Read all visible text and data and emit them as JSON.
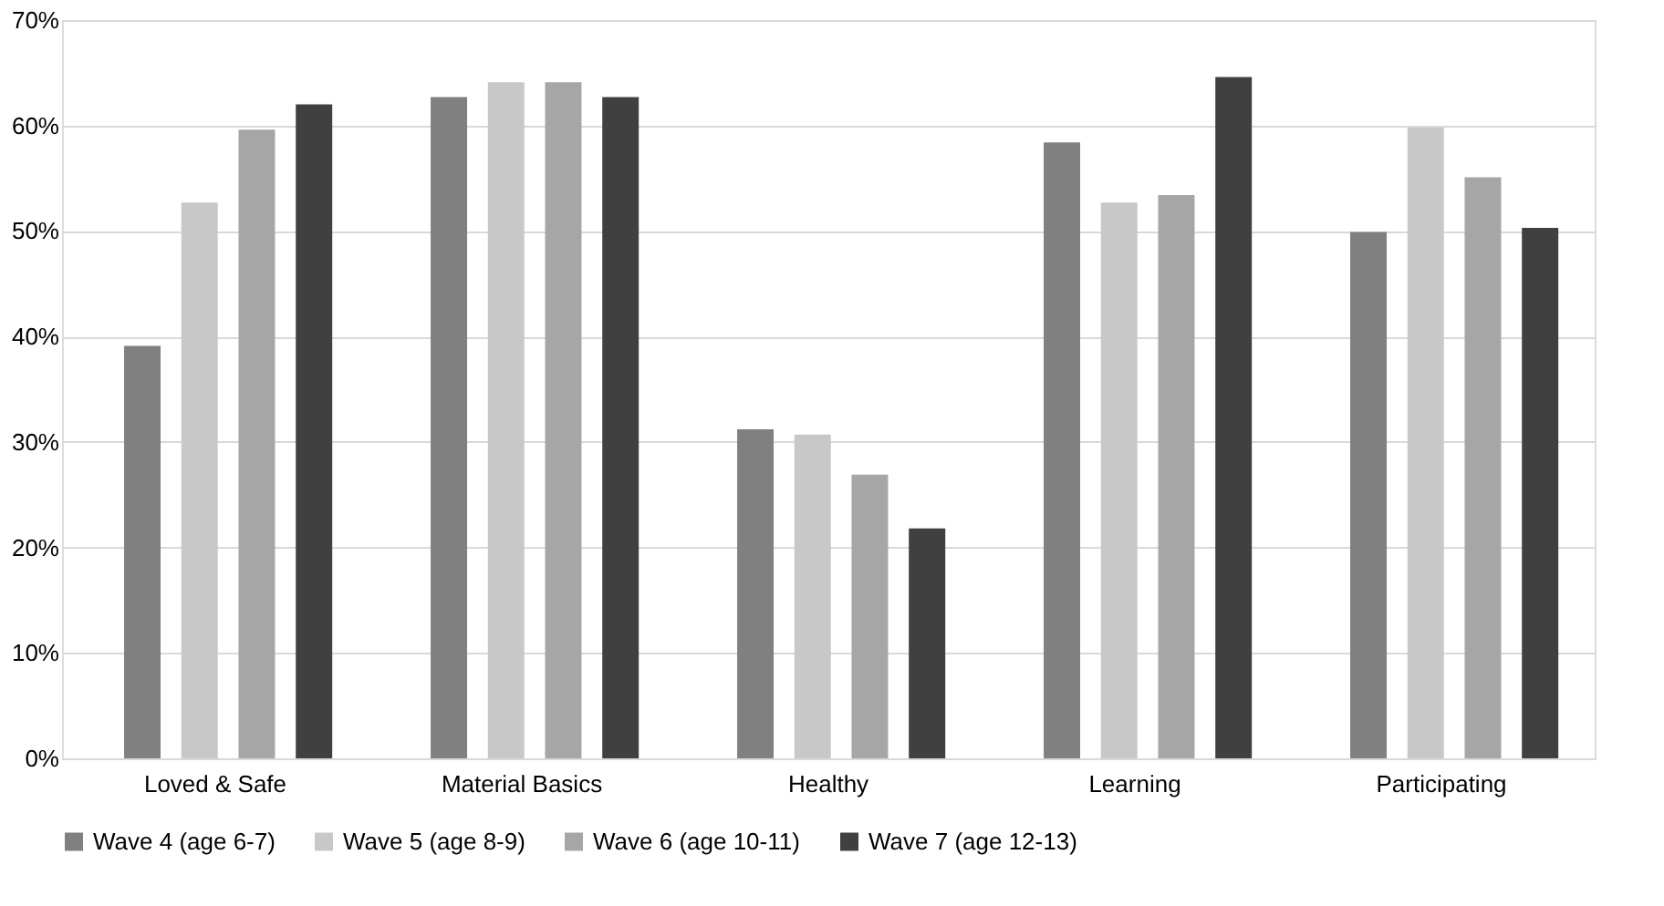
{
  "chart_data": {
    "type": "bar",
    "categories": [
      "Loved & Safe",
      "Material Basics",
      "Healthy",
      "Learning",
      "Participating"
    ],
    "series": [
      {
        "name": "Wave 4 (age 6-7)",
        "color": "#808080",
        "values": [
          39.1,
          62.7,
          31.2,
          58.4,
          49.9
        ]
      },
      {
        "name": "Wave 5 (age 8-9)",
        "color": "#c8c8c8",
        "values": [
          52.7,
          64.1,
          30.7,
          52.7,
          59.8
        ]
      },
      {
        "name": "Wave 6 (age 10-11)",
        "color": "#a6a6a6",
        "values": [
          59.6,
          64.1,
          26.9,
          53.4,
          55.1
        ]
      },
      {
        "name": "Wave 7 (age 12-13)",
        "color": "#404040",
        "values": [
          62.0,
          62.7,
          21.8,
          64.6,
          50.3
        ]
      }
    ],
    "ylim": [
      0,
      70
    ],
    "yticks": [
      {
        "value": 0,
        "label": "0%"
      },
      {
        "value": 10,
        "label": "10%"
      },
      {
        "value": 20,
        "label": "20%"
      },
      {
        "value": 30,
        "label": "30%"
      },
      {
        "value": 40,
        "label": "40%"
      },
      {
        "value": 50,
        "label": "50%"
      },
      {
        "value": 60,
        "label": "60%"
      },
      {
        "value": 70,
        "label": "70%"
      }
    ],
    "grid": "y",
    "legend": "bottom"
  }
}
